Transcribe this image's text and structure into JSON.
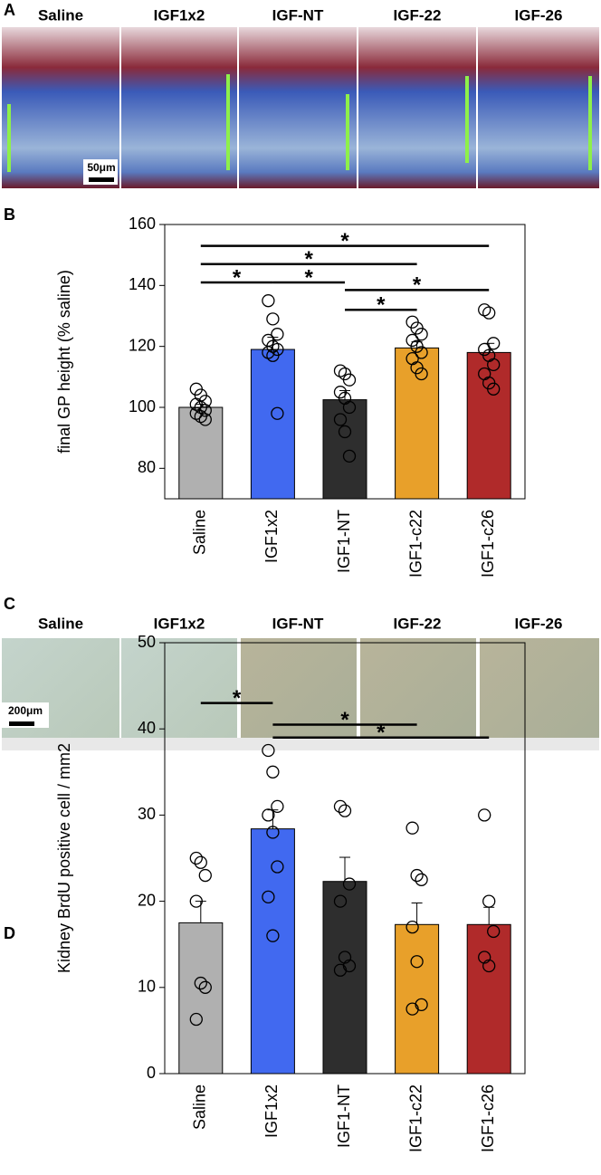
{
  "panel_a": {
    "letter": "A",
    "labels": [
      "Saline",
      "IGF1x2",
      "IGF-NT",
      "IGF-22",
      "IGF-26"
    ],
    "scale_bar": "50μm"
  },
  "panel_c": {
    "letter": "C",
    "labels": [
      "Saline",
      "IGF1x2",
      "IGF-NT",
      "IGF-22",
      "IGF-26"
    ],
    "scale_bar": "200μm"
  },
  "chart_data": [
    {
      "type": "bar",
      "panel_letter": "B",
      "ylabel": "final GP height (% saline)",
      "categories": [
        "Saline",
        "IGF1x2",
        "IGF1-NT",
        "IGF1-c22",
        "IGF1-c26"
      ],
      "values": [
        100,
        119,
        102.5,
        119.5,
        118
      ],
      "errors": [
        1,
        4,
        3,
        2,
        3
      ],
      "colors": [
        "#b0b0b0",
        "#4169f0",
        "#2e2e2e",
        "#e8a02a",
        "#b02a2a"
      ],
      "points": [
        [
          106,
          104,
          102,
          101,
          100,
          99,
          98,
          97,
          96
        ],
        [
          135,
          129,
          124,
          122,
          120,
          119,
          118,
          117,
          98
        ],
        [
          112,
          111,
          109,
          105,
          103,
          100,
          96,
          92,
          84
        ],
        [
          128,
          126,
          124,
          122,
          120,
          118,
          116,
          113,
          111
        ],
        [
          132,
          131,
          121,
          119,
          117,
          114,
          111,
          108,
          106
        ]
      ],
      "significance": [
        {
          "from": 0,
          "to": 4,
          "y": 153,
          "label": "*"
        },
        {
          "from": 0,
          "to": 3,
          "y": 147,
          "label": "*"
        },
        {
          "from": 0,
          "to": 1,
          "y": 141,
          "label": "*"
        },
        {
          "from": 1,
          "to": 2,
          "y": 141,
          "label": "*"
        },
        {
          "from": 2,
          "to": 4,
          "y": 138.5,
          "label": "*"
        },
        {
          "from": 2,
          "to": 3,
          "y": 132,
          "label": "*"
        }
      ],
      "ylim": [
        70,
        160
      ],
      "yticks": [
        80,
        100,
        120,
        140,
        160
      ]
    },
    {
      "type": "bar",
      "panel_letter": "D",
      "ylabel": "Kidney BrdU positive cell / mm2",
      "categories": [
        "Saline",
        "IGF1x2",
        "IGF1-NT",
        "IGF1-c22",
        "IGF1-c26"
      ],
      "values": [
        17.5,
        28.4,
        22.3,
        17.3,
        17.3
      ],
      "errors": [
        2.5,
        2.2,
        2.8,
        2.5,
        2
      ],
      "colors": [
        "#b0b0b0",
        "#4169f0",
        "#2e2e2e",
        "#e8a02a",
        "#b02a2a"
      ],
      "points": [
        [
          25,
          24.5,
          23,
          20,
          10.5,
          10,
          6.3
        ],
        [
          37.5,
          35,
          31,
          30,
          28,
          24,
          20.5,
          16
        ],
        [
          31,
          30.5,
          22,
          20,
          13.5,
          12.5,
          12
        ],
        [
          28.5,
          23,
          22.5,
          17,
          13,
          8,
          7.5
        ],
        [
          30,
          20,
          16.5,
          13.5,
          12.5
        ]
      ],
      "significance": [
        {
          "from": 0,
          "to": 1,
          "y": 43,
          "label": "*"
        },
        {
          "from": 1,
          "to": 3,
          "y": 40.5,
          "label": "*"
        },
        {
          "from": 1,
          "to": 4,
          "y": 39,
          "label": "*"
        }
      ],
      "ylim": [
        0,
        50
      ],
      "yticks": [
        0,
        10,
        20,
        30,
        40,
        50
      ]
    }
  ]
}
